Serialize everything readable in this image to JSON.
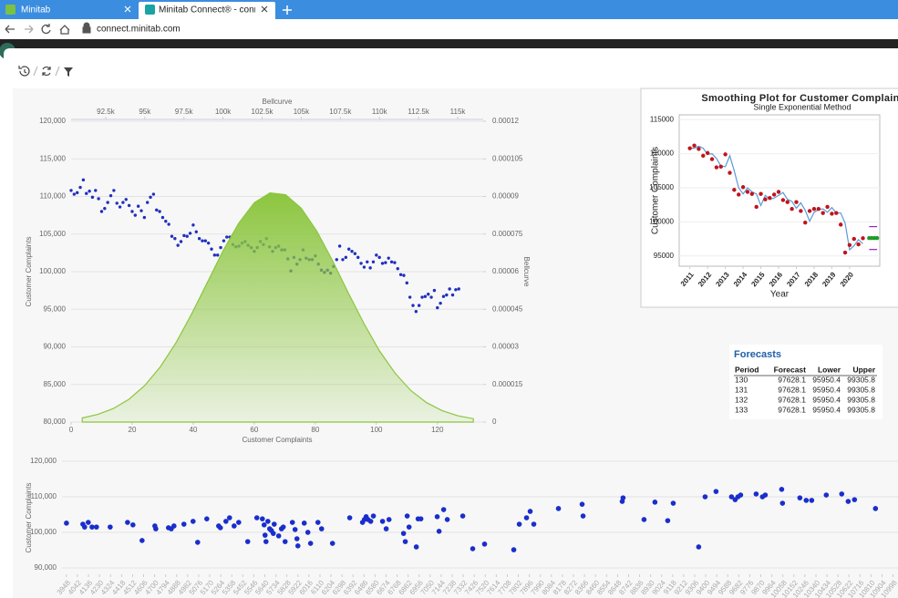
{
  "browser": {
    "tabs": [
      "Minitab",
      "Minitab Connect® - connect.mini"
    ],
    "url": "connect.minitab.com"
  },
  "chart_data": [
    {
      "type": "scatter",
      "x_label": "Customer Complaints",
      "y_label": "Customer Complaints",
      "x2_label": "Bellcurve",
      "y2_label": "Bellcurve",
      "grid": true,
      "x": [
        0,
        1,
        2,
        3,
        4,
        5,
        6,
        7,
        8,
        9,
        10,
        11,
        12,
        13,
        14,
        15,
        16,
        17,
        18,
        19,
        20,
        21,
        22,
        23,
        24,
        25,
        26,
        27,
        28,
        29,
        30,
        31,
        32,
        33,
        34,
        35,
        36,
        37,
        38,
        39,
        40,
        41,
        42,
        43,
        44,
        45,
        46,
        47,
        48,
        49,
        50,
        51,
        52,
        53,
        54,
        55,
        56,
        57,
        58,
        59,
        60,
        61,
        62,
        63,
        64,
        65,
        66,
        67,
        68,
        69,
        70,
        71,
        72,
        73,
        74,
        75,
        76,
        77,
        78,
        79,
        80,
        81,
        82,
        83,
        84,
        85,
        86,
        87,
        88,
        89,
        90,
        91,
        92,
        93,
        94,
        95,
        96,
        97,
        98,
        99,
        100,
        101,
        102,
        103,
        104,
        105,
        106,
        107,
        108,
        109,
        110,
        111,
        112,
        113,
        114,
        115,
        116,
        117,
        118,
        119,
        120,
        121,
        122,
        123,
        124,
        125,
        126,
        127
      ],
      "series": [
        {
          "mode": "points",
          "color": "#1f2fbf",
          "values": [
            110800,
            110300,
            110500,
            111200,
            112200,
            110400,
            110700,
            109900,
            110800,
            109700,
            108000,
            108400,
            109200,
            110100,
            110800,
            109100,
            108600,
            109200,
            109600,
            108800,
            108000,
            107500,
            108700,
            108100,
            107200,
            109200,
            109900,
            110300,
            108200,
            108000,
            107200,
            106700,
            106300,
            104700,
            104400,
            103500,
            104000,
            104800,
            104700,
            105100,
            106200,
            105300,
            104400,
            104100,
            104100,
            103800,
            103000,
            102200,
            102200,
            103200,
            104100,
            104600,
            104600,
            103600,
            103300,
            103400,
            103800,
            104000,
            103500,
            103200,
            102700,
            103200,
            104000,
            103600,
            104400,
            103300,
            102700,
            103200,
            103400,
            102900,
            102900,
            101700,
            100100,
            101900,
            101000,
            101600,
            102900,
            101800,
            101600,
            101600,
            102100,
            101000,
            100200,
            99900,
            100200,
            99800,
            100700,
            101600,
            103400,
            101600,
            101900,
            103000,
            102700,
            102400,
            101900,
            101100,
            100600,
            101300,
            100500,
            101300,
            102200,
            101900,
            101100,
            101200,
            101800,
            101300,
            101200,
            100400,
            99600,
            99500,
            98500,
            96600,
            95500,
            94700,
            95500,
            96600,
            96700,
            97000,
            96600,
            97500,
            95200,
            95800,
            96700,
            96900,
            97700,
            96900,
            97600,
            97700
          ]
        },
        {
          "mode": "area",
          "axis": "y2",
          "x_axis": "x2",
          "color": "#8cc63f",
          "x": [
            91000,
            92000,
            93000,
            94000,
            95000,
            96000,
            97000,
            98000,
            99000,
            100000,
            101000,
            102000,
            103000,
            104000,
            105000,
            106000,
            107000,
            108000,
            109000,
            110000,
            111000,
            112000,
            113000,
            114000,
            115000,
            116000
          ],
          "values": [
            1.64e-06,
            3.07e-06,
            5.44e-06,
            9.15e-06,
            1.46e-05,
            2.21e-05,
            3.17e-05,
            4.32e-05,
            5.57e-05,
            6.83e-05,
            7.93e-05,
            8.75e-05,
            9.14e-05,
            9.07e-05,
            8.53e-05,
            7.61e-05,
            6.44e-05,
            5.16e-05,
            3.94e-05,
            2.84e-05,
            1.95e-05,
            1.26e-05,
            7.79e-06,
            4.56e-06,
            2.53e-06,
            1.33e-06
          ]
        }
      ],
      "xlim": [
        0,
        135
      ],
      "xticks": [
        0,
        20,
        40,
        60,
        80,
        100,
        120
      ],
      "ylim": [
        80000,
        120000
      ],
      "yticks": [
        {
          "value": 80000,
          "label": "80,000"
        },
        {
          "value": 85000,
          "label": "85,000"
        },
        {
          "value": 90000,
          "label": "90,000"
        },
        {
          "value": 95000,
          "label": "95,000"
        },
        {
          "value": 100000,
          "label": "100,000"
        },
        {
          "value": 105000,
          "label": "105,000"
        },
        {
          "value": 110000,
          "label": "110,000"
        },
        {
          "value": 115000,
          "label": "115,000"
        },
        {
          "value": 120000,
          "label": "120,000"
        }
      ],
      "x2lim": [
        90290,
        116630
      ],
      "x2ticks": [
        {
          "value": 92500,
          "label": "92.5k"
        },
        {
          "value": 95000,
          "label": "95k"
        },
        {
          "value": 97500,
          "label": "97.5k"
        },
        {
          "value": 100000,
          "label": "100k"
        },
        {
          "value": 102500,
          "label": "102.5k"
        },
        {
          "value": 105000,
          "label": "105k"
        },
        {
          "value": 107500,
          "label": "107.5k"
        },
        {
          "value": 110000,
          "label": "110k"
        },
        {
          "value": 112500,
          "label": "112.5k"
        },
        {
          "value": 115000,
          "label": "115k"
        }
      ],
      "y2lim": [
        0,
        0.00012
      ],
      "y2ticks": [
        0,
        1.5e-05,
        3e-05,
        4.5e-05,
        6e-05,
        7.5e-05,
        9e-05,
        0.000105,
        0.00012
      ]
    },
    {
      "type": "scatter",
      "y_label": "Customer Complaints",
      "grid": true,
      "x": [
        3948,
        4088,
        4103,
        4134,
        4166,
        4204,
        4321,
        4469,
        4515,
        4593,
        4702,
        4710,
        4818,
        4842,
        4865,
        4950,
        5028,
        5067,
        5145,
        5246,
        5261,
        5308,
        5339,
        5378,
        5417,
        5494,
        5572,
        5619,
        5634,
        5642,
        5650,
        5666,
        5681,
        5696,
        5712,
        5720,
        5758,
        5782,
        5797,
        5813,
        5875,
        5898,
        5914,
        5922,
        5976,
        6007,
        6030,
        6093,
        6124,
        6217,
        6364,
        6473,
        6489,
        6504,
        6520,
        6543,
        6566,
        6644,
        6675,
        6699,
        6823,
        6838,
        6854,
        6870,
        6932,
        6947,
        6971,
        7110,
        7126,
        7165,
        7196,
        7328,
        7413,
        7514,
        7763,
        7810,
        7872,
        7903,
        7934,
        8144,
        8346,
        8354,
        8688,
        8695,
        8874,
        8967,
        9076,
        9123,
        9340,
        9395,
        9488,
        9620,
        9651,
        9675,
        9698,
        9830,
        9884,
        9908,
        10048,
        10055,
        10203,
        10257,
        10304,
        10428,
        10560,
        10615,
        10669,
        10848
      ],
      "series": [
        {
          "mode": "points",
          "color": "#1a2ecc",
          "values": [
            102600,
            102300,
            101500,
            102800,
            101500,
            101500,
            101500,
            102800,
            102100,
            97700,
            101800,
            101000,
            101300,
            101000,
            101800,
            102300,
            103100,
            97200,
            103800,
            101800,
            101300,
            103100,
            104100,
            101800,
            102800,
            97400,
            104100,
            103800,
            102100,
            99200,
            97400,
            103100,
            101000,
            100500,
            99700,
            102300,
            99000,
            101000,
            101500,
            97400,
            102800,
            100800,
            98200,
            96200,
            102600,
            100000,
            96900,
            102800,
            101000,
            96900,
            104100,
            102800,
            103600,
            104400,
            103600,
            103100,
            104600,
            103100,
            101000,
            103600,
            99700,
            97400,
            104600,
            101500,
            95900,
            103800,
            103800,
            104400,
            100300,
            106400,
            103600,
            104600,
            95400,
            96700,
            95100,
            102300,
            104100,
            105900,
            102300,
            106700,
            107900,
            104600,
            108700,
            109700,
            103600,
            108500,
            103300,
            108200,
            95900,
            110000,
            111500,
            110000,
            109200,
            110000,
            110500,
            110800,
            110000,
            110500,
            112100,
            108200,
            109700,
            109000,
            109000,
            110500,
            110800,
            108700,
            109200,
            106700
          ]
        }
      ],
      "xlim": [
        3910,
        11040
      ],
      "xticks": [
        3948,
        4042,
        4136,
        4230,
        4324,
        4418,
        4512,
        4606,
        4700,
        4794,
        4888,
        4982,
        5076,
        5170,
        5264,
        5358,
        5452,
        5546,
        5640,
        5734,
        5828,
        5922,
        6016,
        6110,
        6204,
        6298,
        6392,
        6486,
        6580,
        6674,
        6768,
        6862,
        6956,
        7050,
        7144,
        7238,
        7332,
        7426,
        7520,
        7614,
        7708,
        7802,
        7896,
        7990,
        8084,
        8178,
        8272,
        8366,
        8460,
        8554,
        8648,
        8742,
        8836,
        8930,
        9024,
        9118,
        9212,
        9306,
        9400,
        9494,
        9588,
        9682,
        9776,
        9870,
        9964,
        10058,
        10152,
        10246,
        10340,
        10434,
        10528,
        10622,
        10716,
        10810,
        10904,
        10998
      ],
      "ylim": [
        88200,
        120000
      ],
      "yticks": [
        {
          "value": 90000,
          "label": "90,000"
        },
        {
          "value": 100000,
          "label": "100,000"
        },
        {
          "value": 110000,
          "label": "110,000"
        },
        {
          "value": 120000,
          "label": "120,000"
        }
      ]
    },
    {
      "type": "line",
      "title": "Smoothing Plot for Customer Complaint",
      "subtitle": "Single Exponential Method",
      "x_label": "Year",
      "y_label": "Customer Complaints",
      "grid": true,
      "series": [
        {
          "mode": "line",
          "color": "#5b9bd5",
          "x": [
            2011,
            2011.25,
            2011.5,
            2011.75,
            2012,
            2012.25,
            2012.5,
            2012.75,
            2013,
            2013.25,
            2013.5,
            2013.75,
            2014,
            2014.25,
            2014.5,
            2014.75,
            2015,
            2015.25,
            2015.5,
            2015.75,
            2016,
            2016.25,
            2016.5,
            2016.75,
            2017,
            2017.25,
            2017.5,
            2017.75,
            2018,
            2018.25,
            2018.5,
            2018.75,
            2019,
            2019.25,
            2019.5,
            2019.75,
            2020,
            2020.25,
            2020.5,
            2020.75
          ],
          "values": [
            110800,
            110800,
            111100,
            110800,
            109900,
            110000,
            109300,
            108200,
            108100,
            109700,
            107500,
            105000,
            104100,
            105000,
            104400,
            104100,
            102400,
            103900,
            103300,
            103500,
            103900,
            104300,
            103300,
            103000,
            102000,
            102800,
            101700,
            100100,
            101400,
            101800,
            101900,
            101400,
            102100,
            101300,
            101300,
            99800,
            95900,
            96500,
            97400,
            96800
          ]
        },
        {
          "mode": "points",
          "color": "#c0141c",
          "x": [
            2011,
            2011.25,
            2011.5,
            2011.75,
            2012,
            2012.25,
            2012.5,
            2012.75,
            2013,
            2013.25,
            2013.5,
            2013.75,
            2014,
            2014.25,
            2014.5,
            2014.75,
            2015,
            2015.25,
            2015.5,
            2015.75,
            2016,
            2016.25,
            2016.5,
            2016.75,
            2017,
            2017.25,
            2017.5,
            2017.75,
            2018,
            2018.25,
            2018.5,
            2018.75,
            2019,
            2019.25,
            2019.5,
            2019.75,
            2020,
            2020.25,
            2020.5,
            2020.75
          ],
          "values": [
            110800,
            111200,
            110700,
            109700,
            110100,
            109200,
            108000,
            108100,
            109900,
            107200,
            104700,
            104000,
            105100,
            104400,
            104100,
            102200,
            104100,
            103300,
            103500,
            104000,
            104400,
            103200,
            102900,
            101900,
            102900,
            101600,
            99900,
            101600,
            101900,
            101900,
            101300,
            102200,
            101200,
            101300,
            99600,
            95500,
            96600,
            97500,
            96700,
            97600
          ]
        },
        {
          "mode": "line",
          "color": "#9b1fbf",
          "x": [
            2021.1,
            2021.25,
            2021.4,
            2021.55
          ],
          "values": [
            99305.8,
            99305.8,
            99305.8,
            99305.8
          ]
        },
        {
          "mode": "line",
          "color": "#9b1fbf",
          "x": [
            2021.1,
            2021.25,
            2021.4,
            2021.55
          ],
          "values": [
            95950.4,
            95950.4,
            95950.4,
            95950.4
          ]
        },
        {
          "mode": "points",
          "color": "#1f9a2a",
          "x": [
            2021.1,
            2021.25,
            2021.4,
            2021.55
          ],
          "values": [
            97628.1,
            97628.1,
            97628.1,
            97628.1
          ]
        }
      ],
      "xlim": [
        2010.4,
        2021.7
      ],
      "xticks": [
        2011,
        2012,
        2013,
        2014,
        2015,
        2016,
        2017,
        2018,
        2019,
        2020
      ],
      "ylim": [
        93500,
        115700
      ],
      "yticks": [
        95000,
        100000,
        105000,
        110000,
        115000
      ]
    }
  ],
  "forecasts": {
    "title": "Forecasts",
    "columns": [
      "Period",
      "Forecast",
      "Lower",
      "Upper"
    ],
    "rows": [
      [
        130,
        97628.1,
        95950.4,
        99305.8
      ],
      [
        131,
        97628.1,
        95950.4,
        99305.8
      ],
      [
        132,
        97628.1,
        95950.4,
        99305.8
      ],
      [
        133,
        97628.1,
        95950.4,
        99305.8
      ]
    ]
  }
}
